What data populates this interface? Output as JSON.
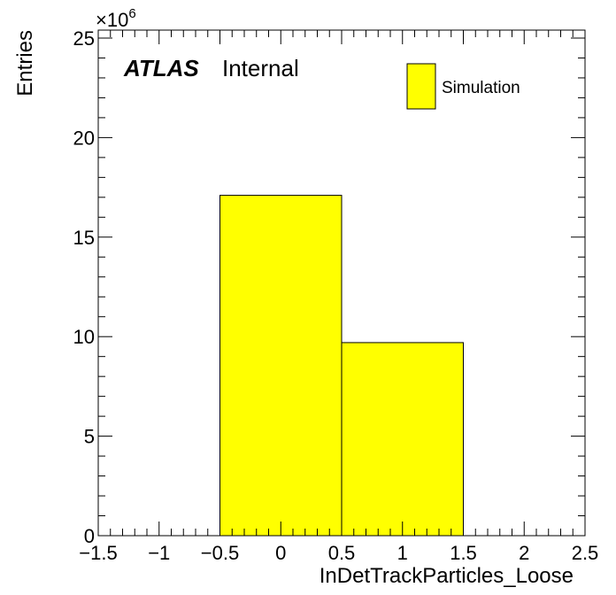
{
  "chart_data": {
    "type": "bar",
    "xlabel": "InDetTrackParticles_Loose",
    "ylabel": "Entries",
    "xlim": [
      -1.5,
      2.5
    ],
    "ylim": [
      0,
      25.4
    ],
    "y_multiplier": "×10",
    "y_multiplier_exp": "6",
    "x_ticks": [
      "−1.5",
      "−1",
      "−0.5",
      "0",
      "0.5",
      "1",
      "1.5",
      "2",
      "2.5"
    ],
    "x_tick_values": [
      -1.5,
      -1,
      -0.5,
      0,
      0.5,
      1,
      1.5,
      2,
      2.5
    ],
    "y_ticks": [
      "0",
      "5",
      "10",
      "15",
      "20",
      "25"
    ],
    "y_tick_values": [
      0,
      5,
      10,
      15,
      20,
      25
    ],
    "bins": [
      {
        "low": -0.5,
        "high": 0.5,
        "value": 17.1
      },
      {
        "low": 0.5,
        "high": 1.5,
        "value": 9.7
      }
    ],
    "fill_color": "#ffff00",
    "legend": {
      "label": "Simulation",
      "placement": "top-right"
    },
    "grid": false
  },
  "annotation": {
    "experiment": "ATLAS",
    "status": "Internal"
  }
}
